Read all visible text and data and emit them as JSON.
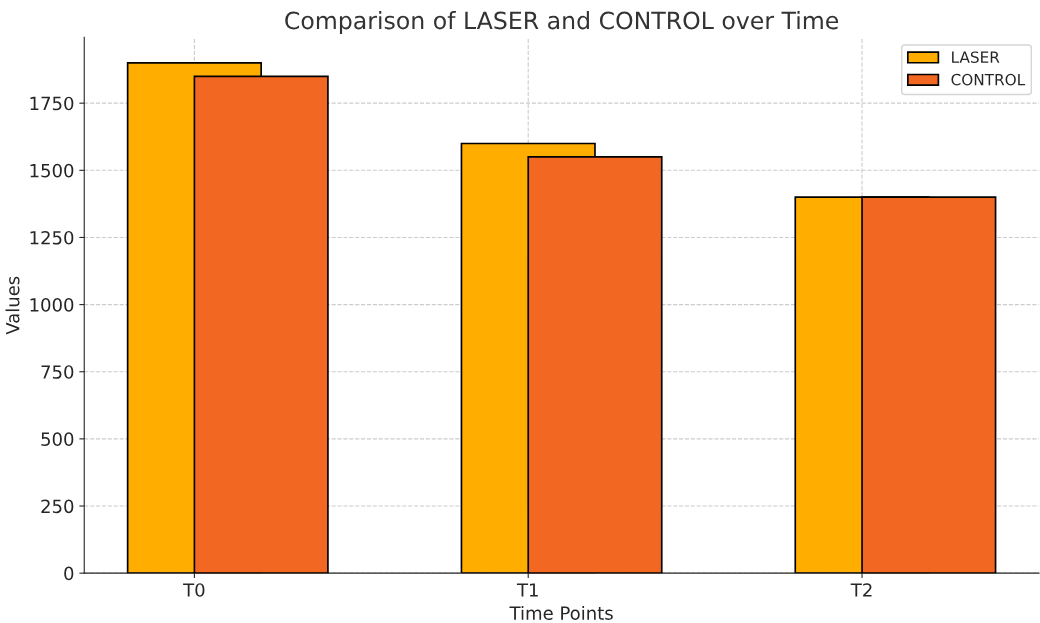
{
  "chart_data": {
    "type": "bar",
    "title": "Comparison of LASER and CONTROL over Time",
    "xlabel": "Time Points",
    "ylabel": "Values",
    "categories": [
      "T0",
      "T1",
      "T2"
    ],
    "series": [
      {
        "name": "LASER",
        "color": "#ffae00",
        "values": [
          1900,
          1600,
          1400
        ]
      },
      {
        "name": "CONTROL",
        "color": "#f26722",
        "values": [
          1850,
          1550,
          1400
        ]
      }
    ],
    "ylim": [
      0,
      1995
    ],
    "yticks": [
      0,
      250,
      500,
      750,
      1000,
      1250,
      1500,
      1750
    ],
    "grid": true,
    "legend": "top right"
  }
}
